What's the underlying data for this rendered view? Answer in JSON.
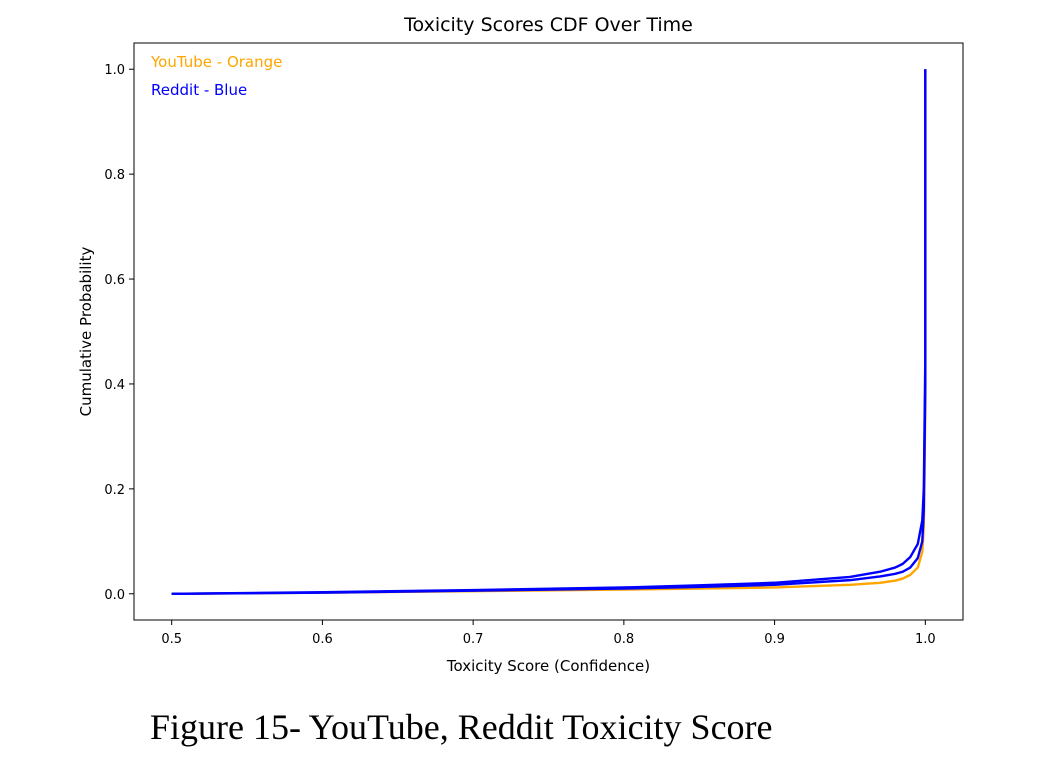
{
  "chart_data": {
    "type": "line",
    "title": "Toxicity Scores CDF Over Time",
    "xlabel": "Toxicity Score (Confidence)",
    "ylabel": "Cumulative Probability",
    "xlim": [
      0.475,
      1.025
    ],
    "ylim": [
      -0.05,
      1.05
    ],
    "xticks": [
      0.5,
      0.6,
      0.7,
      0.8,
      0.9,
      1.0
    ],
    "xtick_labels": [
      "0.5",
      "0.6",
      "0.7",
      "0.8",
      "0.9",
      "1.0"
    ],
    "yticks": [
      0.0,
      0.2,
      0.4,
      0.6,
      0.8,
      1.0
    ],
    "ytick_labels": [
      "0.0",
      "0.2",
      "0.4",
      "0.6",
      "0.8",
      "1.0"
    ],
    "grid": false,
    "annotations": [
      {
        "text": "YouTube - Orange",
        "color": "#FFA500"
      },
      {
        "text": "Reddit - Blue",
        "color": "#0000FF"
      }
    ],
    "series": [
      {
        "color": "#FFA500",
        "x": [
          0.5,
          0.6,
          0.7,
          0.8,
          0.85,
          0.9,
          0.95,
          0.97,
          0.98,
          0.985,
          0.99,
          0.995,
          0.998,
          0.999,
          1.0,
          1.0
        ],
        "y": [
          0.0,
          0.002,
          0.005,
          0.008,
          0.01,
          0.012,
          0.017,
          0.021,
          0.025,
          0.029,
          0.036,
          0.05,
          0.08,
          0.13,
          0.35,
          1.0
        ]
      },
      {
        "color": "#0000FF",
        "x": [
          0.5,
          0.6,
          0.7,
          0.8,
          0.85,
          0.9,
          0.95,
          0.97,
          0.98,
          0.985,
          0.99,
          0.995,
          0.998,
          0.999,
          1.0,
          1.0
        ],
        "y": [
          0.0,
          0.002,
          0.006,
          0.01,
          0.013,
          0.017,
          0.026,
          0.033,
          0.038,
          0.042,
          0.05,
          0.068,
          0.1,
          0.16,
          0.4,
          1.0
        ]
      },
      {
        "color": "#0000FF",
        "x": [
          0.5,
          0.6,
          0.7,
          0.8,
          0.85,
          0.9,
          0.95,
          0.97,
          0.98,
          0.985,
          0.99,
          0.995,
          0.998,
          0.999,
          1.0,
          1.0
        ],
        "y": [
          0.0,
          0.003,
          0.007,
          0.012,
          0.016,
          0.021,
          0.032,
          0.042,
          0.05,
          0.057,
          0.07,
          0.095,
          0.14,
          0.2,
          0.45,
          1.0
        ]
      }
    ]
  },
  "caption": "Figure 15- YouTube, Reddit Toxicity Score"
}
